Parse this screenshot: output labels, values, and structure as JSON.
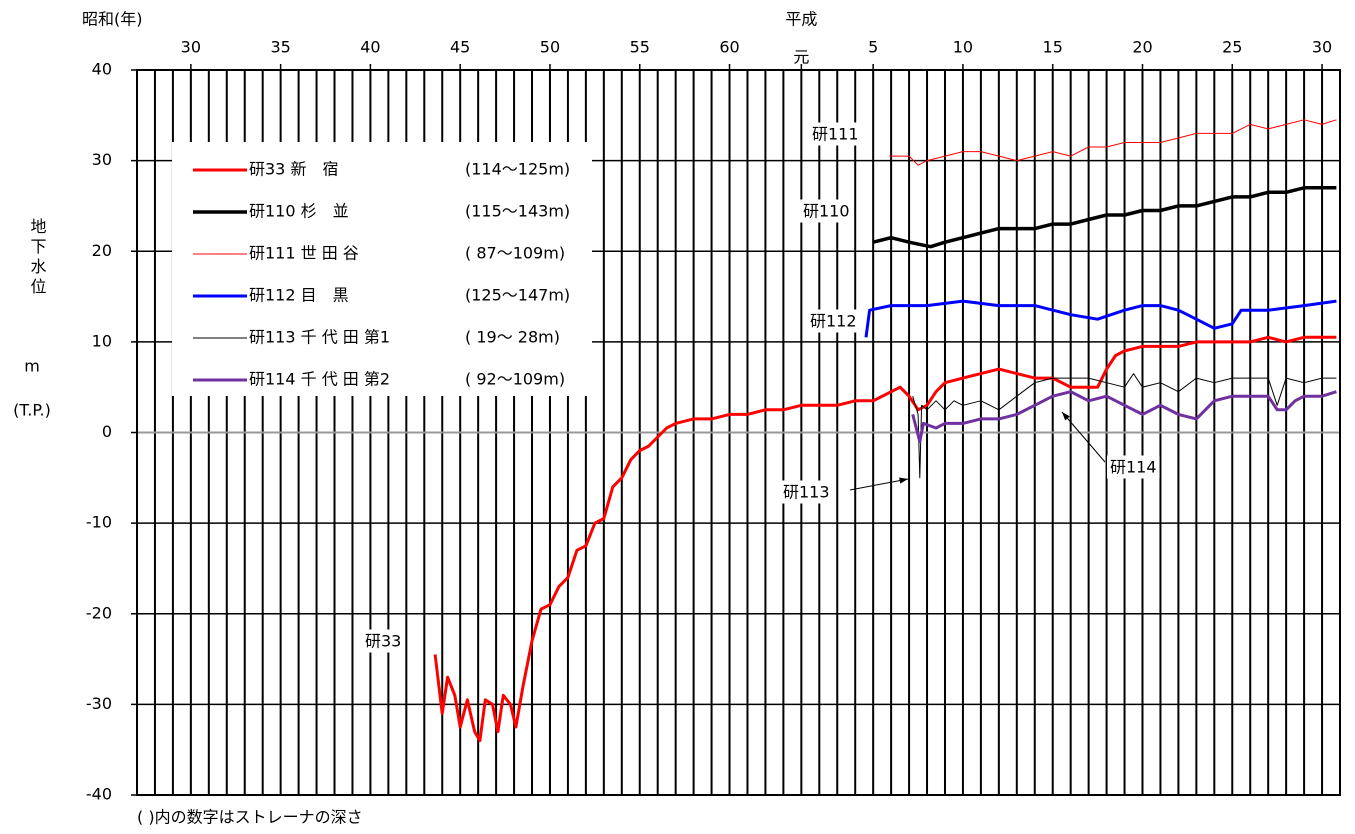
{
  "chart_data": {
    "type": "line",
    "xlabel_showa": "昭和(年)",
    "xlabel_heisei": "平成",
    "ylabel": "地下水位",
    "yunit": "m",
    "ydatum": "(T.P.)",
    "footnote": "(  )内の数字はストレーナの深さ",
    "xlim": [
      1952,
      2019
    ],
    "ylim": [
      -40,
      40
    ],
    "xticks": [
      {
        "value": 1955,
        "label": "30"
      },
      {
        "value": 1960,
        "label": "35"
      },
      {
        "value": 1965,
        "label": "40"
      },
      {
        "value": 1970,
        "label": "45"
      },
      {
        "value": 1975,
        "label": "50"
      },
      {
        "value": 1980,
        "label": "55"
      },
      {
        "value": 1985,
        "label": "60"
      },
      {
        "value": 1989,
        "label": "元"
      },
      {
        "value": 1993,
        "label": "5"
      },
      {
        "value": 1998,
        "label": "10"
      },
      {
        "value": 2003,
        "label": "15"
      },
      {
        "value": 2008,
        "label": "20"
      },
      {
        "value": 2013,
        "label": "25"
      },
      {
        "value": 2018,
        "label": "30"
      }
    ],
    "yticks": [
      -40,
      -30,
      -20,
      -10,
      0,
      10,
      20,
      30,
      40
    ],
    "xgrid_step": 1,
    "grid": true,
    "series": [
      {
        "name": "研33 新　宿",
        "depth": "(114～125m)",
        "color": "#ff0000",
        "line_width": 3,
        "x": [
          1968.6,
          1969.0,
          1969.3,
          1969.7,
          1970.0,
          1970.4,
          1970.8,
          1971.1,
          1971.4,
          1971.8,
          1972.1,
          1972.4,
          1972.8,
          1973.1,
          1973.5,
          1974.0,
          1974.5,
          1975.0,
          1975.5,
          1976.0,
          1976.5,
          1977.0,
          1977.5,
          1978.0,
          1978.5,
          1979.0,
          1979.5,
          1980.0,
          1980.5,
          1981.0,
          1981.5,
          1982.0,
          1983.0,
          1984.0,
          1985.0,
          1986.0,
          1987.0,
          1988.0,
          1989.0,
          1990.0,
          1991.0,
          1992.0,
          1993.0,
          1994.0,
          1994.5,
          1995.0,
          1995.5,
          1996.0,
          1996.5,
          1997.0,
          1998.0,
          1999.0,
          2000.0,
          2001.0,
          2002.0,
          2003.0,
          2004.0,
          2005.0,
          2005.5,
          2006.0,
          2006.5,
          2007.0,
          2008.0,
          2009.0,
          2010.0,
          2011.0,
          2012.0,
          2013.0,
          2014.0,
          2015.0,
          2016.0,
          2017.0,
          2018.0,
          2018.8
        ],
        "values": [
          -24.5,
          -31,
          -27,
          -29,
          -32.5,
          -29.5,
          -33,
          -34,
          -29.5,
          -30,
          -33,
          -29,
          -30,
          -32.5,
          -28,
          -23,
          -19.5,
          -19,
          -17,
          -16,
          -13,
          -12.5,
          -10,
          -9.5,
          -6,
          -5,
          -3,
          -2,
          -1.5,
          -0.5,
          0.5,
          1,
          1.5,
          1.5,
          2,
          2,
          2.5,
          2.5,
          3,
          3,
          3,
          3.5,
          3.5,
          4.5,
          5,
          4,
          2.5,
          3,
          4.5,
          5.5,
          6,
          6.5,
          7,
          6.5,
          6,
          6,
          5,
          5,
          5,
          7,
          8.5,
          9,
          9.5,
          9.5,
          9.5,
          10,
          10,
          10,
          10,
          10.5,
          10,
          10.5,
          10.5,
          10.5
        ]
      },
      {
        "name": "研110 杉　並",
        "depth": "(115～143m)",
        "color": "#000000",
        "line_width": 3.5,
        "x": [
          1993,
          1994,
          1995,
          1996.2,
          1997,
          1998,
          1999,
          2000,
          2001,
          2002,
          2003,
          2004,
          2005,
          2006,
          2007,
          2008,
          2009,
          2010,
          2011,
          2012,
          2013,
          2014,
          2015,
          2016,
          2017,
          2018,
          2018.8
        ],
        "values": [
          21,
          21.5,
          21,
          20.5,
          21,
          21.5,
          22,
          22.5,
          22.5,
          22.5,
          23,
          23,
          23.5,
          24,
          24,
          24.5,
          24.5,
          25,
          25,
          25.5,
          26,
          26,
          26.5,
          26.5,
          27,
          27,
          27
        ]
      },
      {
        "name": "研111 世 田 谷",
        "depth": "( 87～109m)",
        "color": "#ff0000",
        "line_width": 1,
        "x": [
          1993.9,
          1995,
          1995.5,
          1996,
          1997,
          1998,
          1999,
          2000,
          2001,
          2002,
          2003,
          2004,
          2005,
          2006,
          2007,
          2008,
          2009,
          2010,
          2011,
          2012,
          2013,
          2014,
          2015,
          2016,
          2017,
          2018,
          2018.8
        ],
        "values": [
          30.5,
          30.5,
          29.5,
          30,
          30.5,
          31,
          31,
          30.5,
          30,
          30.5,
          31,
          30.5,
          31.5,
          31.5,
          32,
          32,
          32,
          32.5,
          33,
          33,
          33,
          34,
          33.5,
          34,
          34.5,
          34,
          34.5
        ]
      },
      {
        "name": "研112 目　黒",
        "depth": "(125～147m)",
        "color": "#0000ff",
        "line_width": 3,
        "x": [
          1992.6,
          1992.8,
          1994,
          1996,
          1998,
          2000,
          2002,
          2004,
          2005.5,
          2007,
          2008,
          2009,
          2010,
          2011,
          2012,
          2013,
          2013.5,
          2015,
          2017,
          2018.8
        ],
        "values": [
          10.5,
          13.5,
          14,
          14,
          14.5,
          14,
          14,
          13,
          12.5,
          13.5,
          14,
          14,
          13.5,
          12.5,
          11.5,
          12,
          13.5,
          13.5,
          14,
          14.5
        ]
      },
      {
        "name": "研113 千 代 田 第1",
        "depth": "( 19～ 28m)",
        "color": "#000000",
        "line_width": 1,
        "x": [
          1995.2,
          1995.5,
          1995.6,
          1995.7,
          1996,
          1996.5,
          1997,
          1997.5,
          1998,
          1999,
          2000,
          2001,
          2002,
          2003,
          2004,
          2005,
          2006,
          2007,
          2007.5,
          2008,
          2009,
          2010,
          2011,
          2012,
          2013,
          2014,
          2015,
          2015.5,
          2016,
          2017,
          2018,
          2018.8
        ],
        "values": [
          4,
          2,
          -5,
          3,
          2.5,
          3.5,
          2.5,
          3.5,
          3,
          3.5,
          2.5,
          4,
          5.5,
          6,
          6,
          6,
          5.5,
          5,
          6.5,
          5,
          5.5,
          4.5,
          6,
          5.5,
          6,
          6,
          6,
          3,
          6,
          5.5,
          6,
          6
        ]
      },
      {
        "name": "研114 千 代 田 第2",
        "depth": "( 92～109m)",
        "color": "#7030a0",
        "line_width": 3,
        "x": [
          1995.2,
          1995.6,
          1995.8,
          1996.5,
          1997,
          1998,
          1999,
          2000,
          2001,
          2002,
          2003,
          2004,
          2005,
          2006,
          2007,
          2008,
          2009,
          2010,
          2011,
          2012,
          2013,
          2014,
          2015,
          2015.5,
          2016,
          2016.5,
          2017,
          2018,
          2018.8
        ],
        "values": [
          2,
          -1,
          1,
          0.5,
          1,
          1,
          1.5,
          1.5,
          2,
          3,
          4,
          4.5,
          3.5,
          4,
          3,
          2,
          3,
          2,
          1.5,
          3.5,
          4,
          4,
          4,
          2.5,
          2.5,
          3.5,
          4,
          4,
          4.5
        ]
      }
    ],
    "annotations": [
      "研111",
      "研110",
      "研112",
      "研113",
      "研114",
      "研33"
    ]
  }
}
